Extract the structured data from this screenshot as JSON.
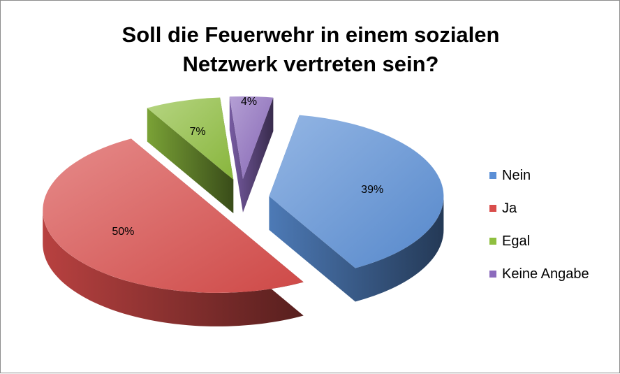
{
  "chart_data": {
    "type": "pie",
    "title_lines": [
      "Soll die Feuerwehr in einem sozialen",
      "Netzwerk vertreten sein?"
    ],
    "categories": [
      "Nein",
      "Ja",
      "Egal",
      "Keine Angabe"
    ],
    "values": [
      39,
      50,
      7,
      4
    ],
    "data_labels": [
      "39%",
      "50%",
      "7%",
      "4%"
    ],
    "colors": [
      "#5b8fd6",
      "#d94d4b",
      "#8fbf3f",
      "#8c6bbd"
    ],
    "style": "3d-exploded",
    "legend_position": "right"
  }
}
